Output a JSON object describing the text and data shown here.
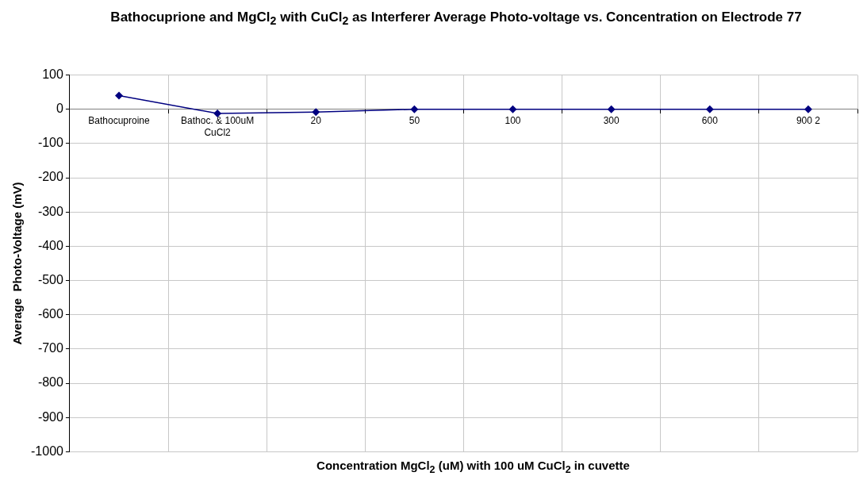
{
  "chart_data": {
    "type": "line",
    "title": "Bathocuprione and MgCl$_{2}$ with CuCl$_{2}$ as Interferer Average Photo-voltage vs. Concentration on Electrode 77",
    "xlabel": "Concentration MgCl$_{2}$ (uM) with 100 uM CuCl$_{2}$ in cuvette",
    "ylabel": "Average  Photo-Voltage (mV)",
    "categories": [
      "Bathocuproine",
      "Bathoc. & 100uM CuCl2",
      "20",
      "50",
      "100",
      "300",
      "600",
      "900 2"
    ],
    "series": [
      {
        "color": "#000080",
        "values": [
          40,
          -12,
          -8,
          0,
          0,
          0,
          0,
          0
        ]
      }
    ],
    "ylim": [
      -1000,
      100
    ],
    "yticks": [
      -1000,
      -900,
      -800,
      -700,
      -600,
      -500,
      -400,
      -300,
      -200,
      -100,
      0,
      100
    ],
    "grid": true,
    "legend": false,
    "marker": "diamond",
    "line_style": "solid"
  }
}
